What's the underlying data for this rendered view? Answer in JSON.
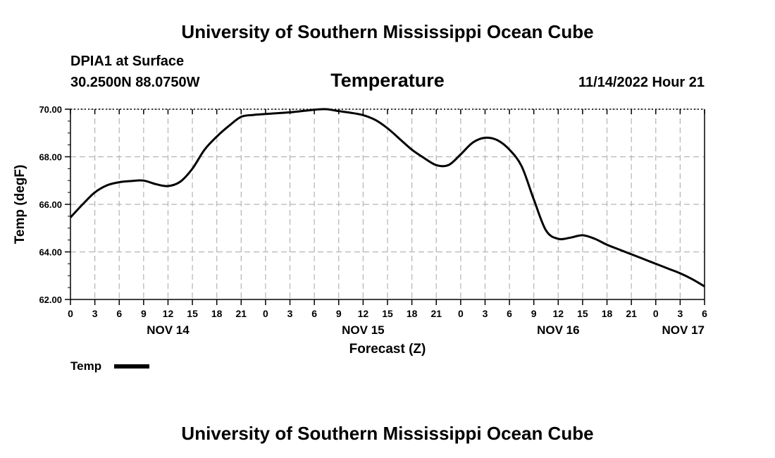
{
  "header": {
    "title_top": "University of Southern Mississippi Ocean Cube",
    "station": "DPIA1 at Surface",
    "coords": "30.2500N  88.0750W",
    "datetime": "11/14/2022 Hour 21",
    "title_bottom": "University of Southern Mississippi Ocean Cube"
  },
  "chart_data": {
    "type": "line",
    "title": "Temperature",
    "ylabel": "Temp (degF)",
    "xlabel": "Forecast (Z)",
    "ylim": [
      62,
      70
    ],
    "yticks": [
      62,
      64,
      66,
      68,
      70
    ],
    "ytick_labels": [
      "62.00",
      "64.00",
      "66.00",
      "68.00",
      "70.00"
    ],
    "xlim": [
      0,
      78
    ],
    "xticks": [
      0,
      3,
      6,
      9,
      12,
      15,
      18,
      21,
      24,
      27,
      30,
      33,
      36,
      39,
      42,
      45,
      48,
      51,
      54,
      57,
      60,
      63,
      66,
      69,
      72,
      75,
      78
    ],
    "xtick_labels": [
      "0",
      "3",
      "6",
      "9",
      "12",
      "15",
      "18",
      "21",
      "0",
      "3",
      "6",
      "9",
      "12",
      "15",
      "18",
      "21",
      "0",
      "3",
      "6",
      "9",
      "12",
      "15",
      "18",
      "21",
      "0",
      "3",
      "6"
    ],
    "date_labels": [
      {
        "x": 12,
        "label": "NOV 14"
      },
      {
        "x": 36,
        "label": "NOV 15"
      },
      {
        "x": 60,
        "label": "NOV 16"
      },
      {
        "x": 78,
        "label": "NOV 17"
      }
    ],
    "grid": true,
    "legend": "bottom-left",
    "series": [
      {
        "name": "Temp",
        "x": [
          0,
          1.5,
          3,
          4.5,
          6,
          7.5,
          9,
          10.5,
          12,
          13.5,
          15,
          16.5,
          18,
          19.5,
          21,
          22.5,
          24,
          27,
          30,
          31.5,
          33,
          34.5,
          36,
          37.5,
          39,
          40.5,
          42,
          43.5,
          45,
          46.5,
          48,
          49.5,
          51,
          52.5,
          54,
          55.5,
          57,
          58.5,
          60,
          61.5,
          63,
          64.5,
          66,
          67.5,
          69,
          70.5,
          72,
          73.5,
          75,
          76.5,
          78
        ],
        "values": [
          65.45,
          66.0,
          66.5,
          66.8,
          66.93,
          66.98,
          67.0,
          66.85,
          66.77,
          66.95,
          67.5,
          68.3,
          68.85,
          69.3,
          69.68,
          69.76,
          69.8,
          69.87,
          69.98,
          70.0,
          69.92,
          69.85,
          69.75,
          69.55,
          69.2,
          68.75,
          68.3,
          67.95,
          67.65,
          67.65,
          68.1,
          68.6,
          68.8,
          68.7,
          68.3,
          67.6,
          66.2,
          64.9,
          64.55,
          64.6,
          64.7,
          64.55,
          64.3,
          64.1,
          63.9,
          63.7,
          63.5,
          63.3,
          63.1,
          62.85,
          62.55
        ]
      }
    ]
  }
}
